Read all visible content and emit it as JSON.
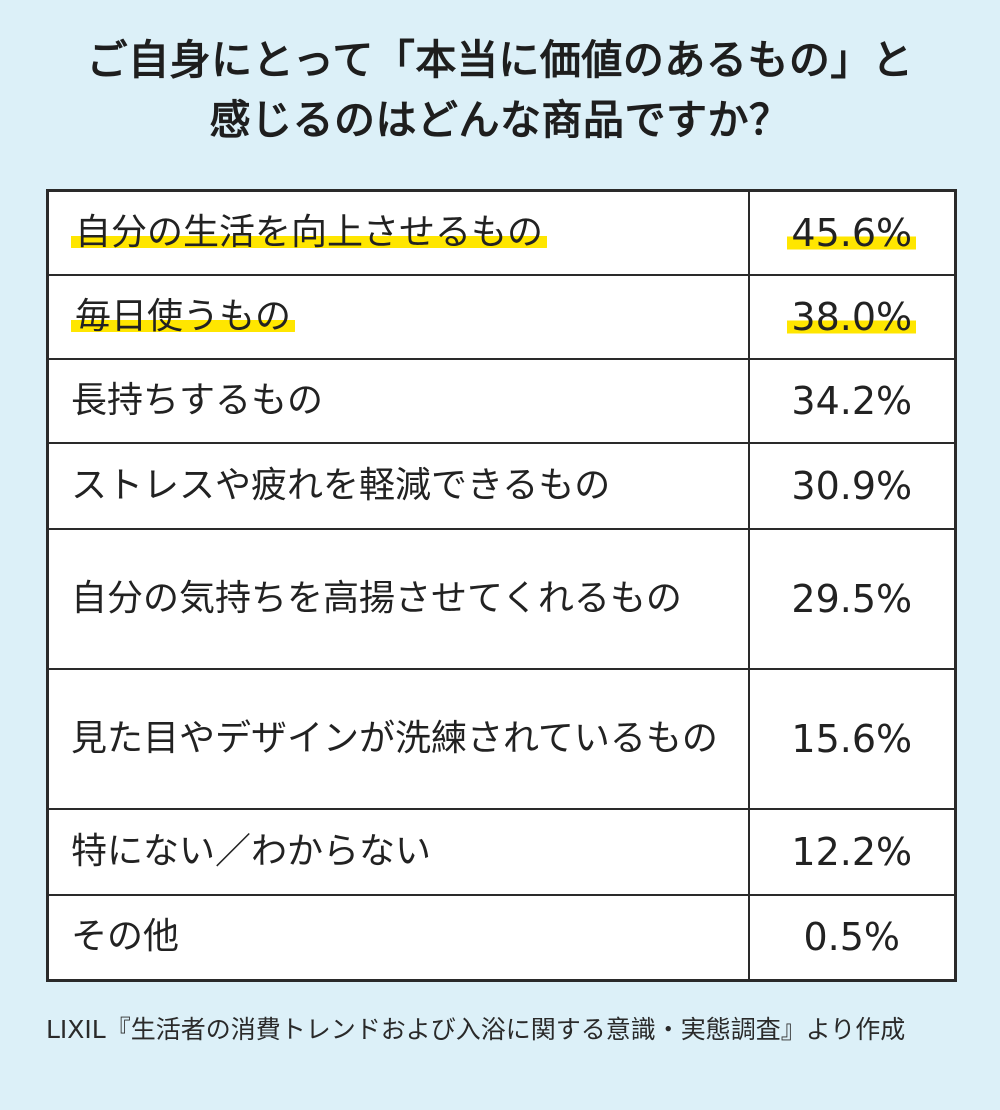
{
  "title": {
    "line1": "ご自身にとって「本当に価値のあるもの」と",
    "line2": "感じるのはどんな商品ですか？"
  },
  "chart_data": {
    "type": "table",
    "title": "ご自身にとって「本当に価値のあるもの」と感じるのはどんな商品ですか？",
    "rows": [
      {
        "label": "自分の生活を向上させるもの",
        "value": 45.6,
        "display": "45.6%",
        "highlight": true
      },
      {
        "label": "毎日使うもの",
        "value": 38.0,
        "display": "38.0%",
        "highlight": true
      },
      {
        "label": "長持ちするもの",
        "value": 34.2,
        "display": "34.2%",
        "highlight": false
      },
      {
        "label": "ストレスや疲れを軽減できるもの",
        "value": 30.9,
        "display": "30.9%",
        "highlight": false
      },
      {
        "label": "自分の気持ちを高揚させてくれるもの",
        "value": 29.5,
        "display": "29.5%",
        "highlight": false
      },
      {
        "label": "見た目やデザインが洗練されているもの",
        "value": 15.6,
        "display": "15.6%",
        "highlight": false
      },
      {
        "label": "特にない／わからない",
        "value": 12.2,
        "display": "12.2%",
        "highlight": false
      },
      {
        "label": "その他",
        "value": 0.5,
        "display": "0.5%",
        "highlight": false
      }
    ]
  },
  "source": "LIXIL『生活者の消費トレンドおよび入浴に関する意識・実態調査』より作成",
  "colors": {
    "background": "#dcf0f8",
    "highlight": "#ffe600",
    "border": "#2a2a2a"
  }
}
